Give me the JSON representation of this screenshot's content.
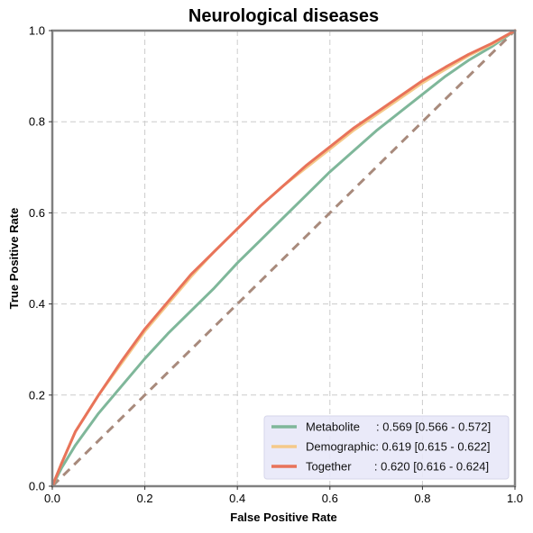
{
  "chart_data": {
    "type": "line",
    "title": "Neurological diseases",
    "xlabel": "False Positive Rate",
    "ylabel": "True Positive Rate",
    "xlim": [
      0,
      1
    ],
    "ylim": [
      0,
      1
    ],
    "xticks": [
      "0.0",
      "0.2",
      "0.4",
      "0.6",
      "0.8",
      "1.0"
    ],
    "yticks": [
      "0.0",
      "0.2",
      "0.4",
      "0.6",
      "0.8",
      "1.0"
    ],
    "grid": true,
    "legend_position": "lower-right",
    "series": [
      {
        "name": "Metabolite",
        "legend_text": "Metabolite     : 0.569 [0.566 - 0.572]",
        "color": "#7fb79a",
        "x": [
          0.0,
          0.02,
          0.05,
          0.1,
          0.15,
          0.2,
          0.25,
          0.3,
          0.35,
          0.4,
          0.45,
          0.5,
          0.55,
          0.6,
          0.65,
          0.7,
          0.75,
          0.8,
          0.85,
          0.9,
          0.95,
          1.0
        ],
        "y": [
          0.0,
          0.04,
          0.09,
          0.16,
          0.22,
          0.28,
          0.335,
          0.385,
          0.435,
          0.49,
          0.54,
          0.59,
          0.64,
          0.69,
          0.735,
          0.78,
          0.82,
          0.86,
          0.9,
          0.935,
          0.965,
          1.0
        ]
      },
      {
        "name": "Demographic",
        "legend_text": "Demographic: 0.619 [0.615 - 0.622]",
        "color": "#f5c98a",
        "x": [
          0.0,
          0.02,
          0.05,
          0.1,
          0.15,
          0.2,
          0.25,
          0.3,
          0.35,
          0.4,
          0.45,
          0.5,
          0.55,
          0.6,
          0.65,
          0.7,
          0.75,
          0.8,
          0.85,
          0.9,
          0.95,
          1.0
        ],
        "y": [
          0.0,
          0.05,
          0.12,
          0.2,
          0.27,
          0.34,
          0.4,
          0.46,
          0.515,
          0.565,
          0.615,
          0.66,
          0.7,
          0.74,
          0.78,
          0.815,
          0.85,
          0.885,
          0.915,
          0.945,
          0.97,
          1.0
        ]
      },
      {
        "name": "Together",
        "legend_text": "Together       : 0.620 [0.616 - 0.624]",
        "color": "#e8735a",
        "x": [
          0.0,
          0.02,
          0.05,
          0.1,
          0.15,
          0.2,
          0.25,
          0.3,
          0.35,
          0.4,
          0.45,
          0.5,
          0.55,
          0.6,
          0.65,
          0.7,
          0.75,
          0.8,
          0.85,
          0.9,
          0.95,
          1.0
        ],
        "y": [
          0.0,
          0.05,
          0.12,
          0.2,
          0.275,
          0.345,
          0.405,
          0.465,
          0.515,
          0.565,
          0.615,
          0.66,
          0.705,
          0.745,
          0.785,
          0.82,
          0.855,
          0.89,
          0.92,
          0.948,
          0.972,
          1.0
        ]
      }
    ],
    "reference_line": {
      "x": [
        0,
        1
      ],
      "y": [
        0,
        1
      ],
      "color": "#a88a7c",
      "style": "dashed"
    },
    "colors": {
      "frame": "#808080",
      "grid": "#cccccc",
      "legend_bg": "#e8e8f8"
    }
  }
}
